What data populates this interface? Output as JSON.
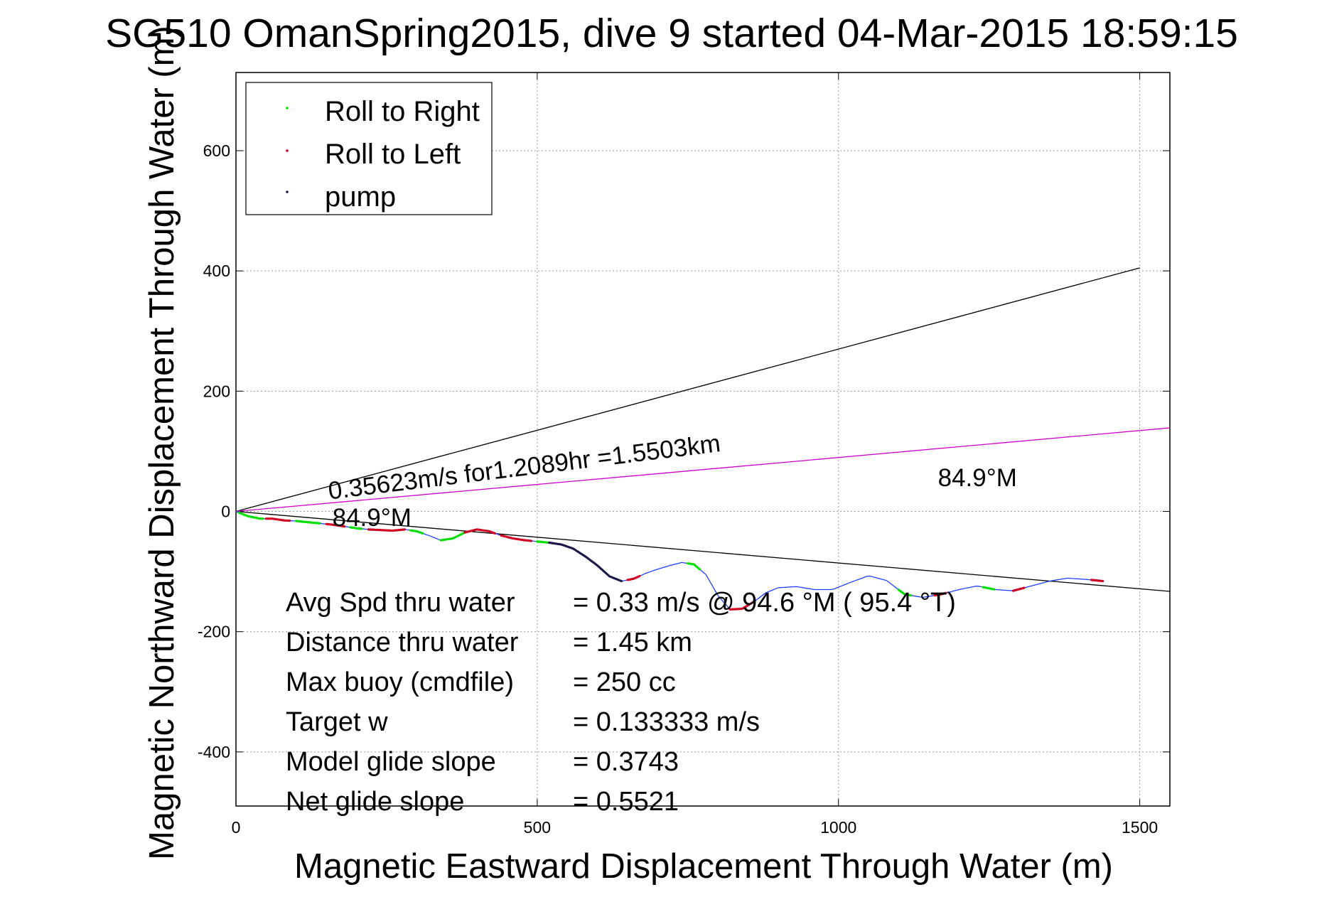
{
  "chart_data": {
    "type": "line",
    "title": "SG510 OmanSpring2015, dive 9 started 04-Mar-2015 18:59:15",
    "xlabel": "Magnetic Eastward Displacement Through Water (m)",
    "ylabel": "Magnetic Northward Displacement Through Water (m)",
    "xlim": [
      0,
      1550
    ],
    "ylim": [
      -490,
      730
    ],
    "xticks": [
      0,
      500,
      1000,
      1500
    ],
    "yticks": [
      -400,
      -200,
      0,
      200,
      400,
      600
    ],
    "grid": true,
    "legend": {
      "placement": "top-left",
      "entries": [
        {
          "name": "Roll to Right",
          "color": "#00e000"
        },
        {
          "name": "Roll to Left",
          "color": "#d00020"
        },
        {
          "name": "pump",
          "color": "#1a1a4a"
        }
      ]
    },
    "reference_lines": [
      {
        "x": [
          0,
          1500
        ],
        "y": [
          0,
          405
        ],
        "color": "#000000"
      },
      {
        "x": [
          0,
          1550
        ],
        "y": [
          0,
          -133
        ],
        "color": "#000000"
      },
      {
        "x": [
          0,
          1550
        ],
        "y": [
          0,
          139
        ],
        "color": "#d000d0"
      }
    ],
    "track": {
      "color": "#2040ff",
      "x": [
        0,
        20,
        40,
        60,
        80,
        100,
        120,
        140,
        160,
        180,
        200,
        220,
        240,
        260,
        280,
        300,
        320,
        340,
        360,
        380,
        400,
        420,
        440,
        460,
        480,
        500,
        520,
        540,
        560,
        580,
        600,
        620,
        640,
        660,
        680,
        700,
        720,
        740,
        760,
        780,
        800,
        820,
        840,
        860,
        880,
        900,
        930,
        960,
        990,
        1020,
        1050,
        1080,
        1110,
        1140,
        1170,
        1200,
        1230,
        1260,
        1290,
        1320,
        1350,
        1380,
        1410,
        1440
      ],
      "y": [
        0,
        -8,
        -12,
        -12,
        -15,
        -16,
        -18,
        -20,
        -22,
        -25,
        -28,
        -30,
        -31,
        -32,
        -30,
        -33,
        -40,
        -48,
        -45,
        -35,
        -30,
        -33,
        -40,
        -45,
        -48,
        -50,
        -52,
        -55,
        -62,
        -75,
        -90,
        -108,
        -116,
        -112,
        -103,
        -96,
        -90,
        -85,
        -88,
        -105,
        -140,
        -163,
        -162,
        -150,
        -135,
        -127,
        -125,
        -130,
        -130,
        -118,
        -107,
        -115,
        -138,
        -143,
        -138,
        -130,
        -124,
        -130,
        -132,
        -124,
        -116,
        -111,
        -113,
        -116
      ]
    },
    "segments": {
      "roll_right": [
        [
          5,
          45
        ],
        [
          100,
          140
        ],
        [
          190,
          210
        ],
        [
          290,
          310
        ],
        [
          340,
          380
        ],
        [
          500,
          520
        ],
        [
          750,
          770
        ],
        [
          1100,
          1120
        ],
        [
          1240,
          1260
        ]
      ],
      "roll_left": [
        [
          50,
          90
        ],
        [
          150,
          180
        ],
        [
          220,
          280
        ],
        [
          380,
          430
        ],
        [
          440,
          490
        ],
        [
          650,
          670
        ],
        [
          820,
          860
        ],
        [
          1160,
          1180
        ],
        [
          1290,
          1310
        ],
        [
          1420,
          1440
        ]
      ],
      "pump": [
        [
          520,
          640
        ]
      ]
    },
    "annotations": [
      {
        "text": "0.35623m/s for1.2089hr =1.5503km",
        "x": 155,
        "y": 20,
        "rotate": -7
      },
      {
        "text": "84.9°M",
        "x": 160,
        "y": -24,
        "rotate": 0
      },
      {
        "text": "84.9°M",
        "x": 1165,
        "y": 42,
        "rotate": 0
      }
    ],
    "stats": [
      {
        "label": "Avg Spd thru water",
        "value": "=  0.33 m/s @  94.6 °M ( 95.4 °T)"
      },
      {
        "label": "Distance thru water",
        "value": "=  1.45 km"
      },
      {
        "label": "Max buoy (cmdfile)",
        "value": "= 250 cc"
      },
      {
        "label": "Target w",
        "value": "= 0.133333 m/s"
      },
      {
        "label": "Model glide slope",
        "value": "= 0.3743"
      },
      {
        "label": "Net glide slope",
        "value": "= 0.5521"
      }
    ]
  }
}
